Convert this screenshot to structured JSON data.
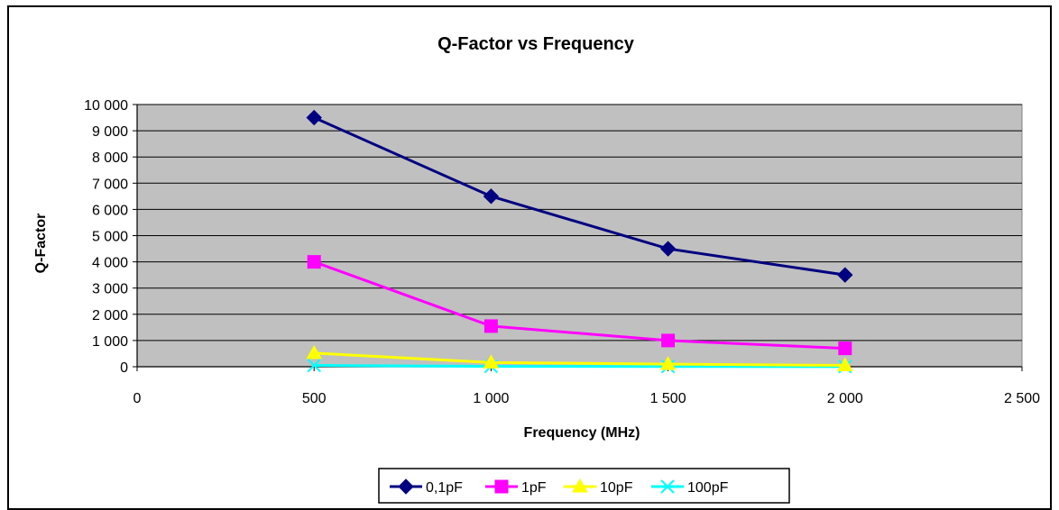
{
  "chart_data": {
    "type": "line",
    "title": "Q-Factor vs Frequency",
    "xlabel": "Frequency (MHz)",
    "ylabel": "Q-Factor",
    "xlim": [
      0,
      2500
    ],
    "ylim": [
      0,
      10000
    ],
    "x_ticks": [
      0,
      500,
      1000,
      1500,
      2000,
      2500
    ],
    "x_tick_labels": [
      "0",
      "500",
      "1 000",
      "1 500",
      "2 000",
      "2 500"
    ],
    "y_ticks": [
      0,
      1000,
      2000,
      3000,
      4000,
      5000,
      6000,
      7000,
      8000,
      9000,
      10000
    ],
    "y_tick_labels": [
      "0",
      "1 000",
      "2 000",
      "3 000",
      "4 000",
      "5 000",
      "6 000",
      "7 000",
      "8 000",
      "9 000",
      "10 000"
    ],
    "grid": "horizontal",
    "plot_background": "#c0c0c0",
    "legend_position": "bottom",
    "x": [
      500,
      1000,
      1500,
      2000
    ],
    "series": [
      {
        "name": "0,1pF",
        "values": [
          9500,
          6500,
          4500,
          3500
        ],
        "color": "#000080",
        "marker": "diamond"
      },
      {
        "name": "1pF",
        "values": [
          4000,
          1550,
          1000,
          700
        ],
        "color": "#ff00ff",
        "marker": "square"
      },
      {
        "name": "10pF",
        "values": [
          520,
          160,
          100,
          50
        ],
        "color": "#ffff00",
        "marker": "triangle"
      },
      {
        "name": "100pF",
        "values": [
          50,
          15,
          10,
          5
        ],
        "color": "#00ffff",
        "marker": "x"
      }
    ]
  }
}
